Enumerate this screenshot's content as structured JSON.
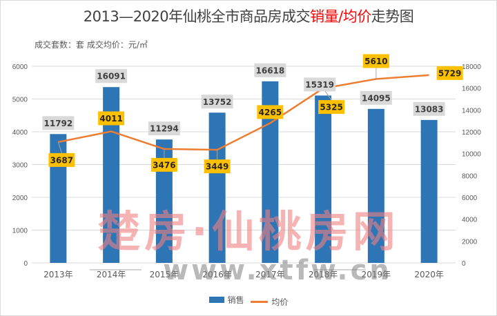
{
  "title": {
    "prefix": "2013—2020年仙桃全市商品房成交",
    "highlight": "销量/均价",
    "suffix": "走势图"
  },
  "subtitle": "成交套数：套 成交均价：元/㎡",
  "watermark": {
    "main": "楚房·仙桃房网",
    "url": "www.xtfw.cn"
  },
  "colors": {
    "bar": "#2e75b6",
    "line": "#ed7d31",
    "line_label_bg": "#ffc000",
    "bar_label_bg": "#d9d9d9",
    "title_highlight": "#ff0000"
  },
  "chart_data": {
    "type": "bar+line",
    "title": "2013—2020年仙桃全市商品房成交销量/均价走势图",
    "subtitle": "成交套数：套 成交均价：元/㎡",
    "categories": [
      "2013年",
      "2014年",
      "2015年",
      "2016年",
      "2017年",
      "2018年",
      "2019年",
      "2020年"
    ],
    "series": [
      {
        "name": "销售",
        "type": "bar",
        "axis": "right",
        "unit": "套",
        "values": [
          11792,
          16091,
          11294,
          13752,
          16618,
          15319,
          14095,
          13083
        ]
      },
      {
        "name": "均价",
        "type": "line",
        "axis": "left",
        "unit": "元/㎡",
        "values": [
          3687,
          4011,
          3476,
          3449,
          4265,
          5325,
          5610,
          5729
        ]
      }
    ],
    "y_left": {
      "min": 0,
      "max": 6000,
      "step": 1000,
      "ticks": [
        "0",
        "1000",
        "2000",
        "3000",
        "4000",
        "5000",
        "6000"
      ]
    },
    "y_right": {
      "min": 0,
      "max": 18000,
      "step": 2000,
      "ticks": [
        "0",
        "2000",
        "4000",
        "6000",
        "8000",
        "10000",
        "12000",
        "14000",
        "16000",
        "18000"
      ]
    },
    "grid": true,
    "legend": {
      "position": "bottom",
      "entries": [
        {
          "label": "销售",
          "type": "bar"
        },
        {
          "label": "均价",
          "type": "line"
        }
      ]
    }
  }
}
